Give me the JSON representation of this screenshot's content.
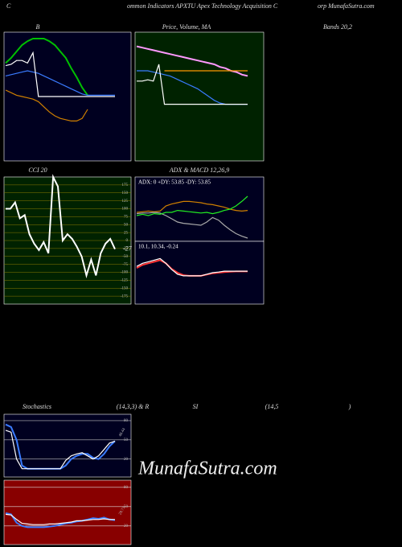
{
  "header": [
    "C",
    "ommon  Indicators APXTU Apex Technology Acquisition  C",
    "orp MunafaSutra.com"
  ],
  "captions": [
    "B",
    "Price, Volume, MA",
    "Bands 20,2",
    "CCI 20",
    "ADX  & MACD 12,26,9",
    "Stochastics",
    "(14,3,3) & R",
    "SI",
    "(14,5",
    ")"
  ],
  "watermark": "MunafaSutra.com",
  "chart_data": [
    {
      "type": "line",
      "background": "#000020",
      "ylim": [
        0,
        100
      ],
      "series": [
        {
          "color": "#00c000",
          "values": [
            76,
            80,
            85,
            90,
            93,
            95,
            95,
            95,
            93,
            90,
            85,
            80,
            72,
            65,
            57,
            51,
            null,
            null,
            null,
            null,
            null
          ]
        },
        {
          "color": "#3a7bff",
          "values": [
            66,
            67,
            68,
            69,
            70,
            69,
            68,
            66,
            64,
            62,
            60,
            58,
            56,
            54,
            52,
            51,
            51,
            51,
            51,
            51,
            51
          ]
        },
        {
          "color": "#d08000",
          "values": [
            55,
            53,
            51,
            50,
            49,
            48,
            46,
            42,
            38,
            35,
            33,
            32,
            31,
            31,
            33,
            40,
            null,
            null,
            null,
            null,
            null
          ]
        },
        {
          "color": "#ffffff",
          "values": [
            74,
            75,
            78,
            78,
            76,
            84,
            50,
            50,
            50,
            50,
            50,
            50,
            50,
            50,
            50,
            50,
            50,
            50,
            50,
            50,
            50
          ]
        }
      ]
    },
    {
      "type": "line",
      "background": "#002200",
      "ylim": [
        0,
        100
      ],
      "series": [
        {
          "color": "#ff99ff",
          "values": [
            89,
            88,
            87,
            86,
            85,
            84,
            83,
            82,
            81,
            80,
            79,
            78,
            77,
            76,
            75,
            73,
            72,
            70,
            69,
            67,
            66
          ]
        },
        {
          "color": "#ff9900",
          "values": [
            null,
            null,
            null,
            null,
            null,
            70,
            70,
            70,
            70,
            70,
            70,
            70,
            70,
            70,
            70,
            70,
            70,
            70,
            70,
            70,
            70
          ]
        },
        {
          "color": "#3a7bff",
          "values": [
            70,
            70,
            70,
            69,
            68,
            67,
            66,
            64,
            62,
            60,
            58,
            56,
            53,
            50,
            47,
            45,
            44,
            44,
            44,
            44,
            44
          ]
        },
        {
          "color": "#ffffff",
          "values": [
            62,
            62,
            63,
            62,
            75,
            44,
            44,
            44,
            44,
            44,
            44,
            44,
            44,
            44,
            44,
            44,
            44,
            44,
            44,
            44,
            44
          ]
        }
      ]
    },
    {
      "type": "line",
      "background": "#002200",
      "ylim": [
        -200,
        200
      ],
      "gridcolor": "#8a7a00",
      "yticks": [
        175,
        150,
        125,
        100,
        75,
        50,
        25,
        0,
        -25,
        -50,
        -75,
        -100,
        -125,
        -150,
        -175
      ],
      "annotation": "-27",
      "series": [
        {
          "color": "#ffffff",
          "values": [
            100,
            100,
            120,
            70,
            80,
            20,
            -10,
            -30,
            -5,
            -40,
            200,
            170,
            0,
            20,
            5,
            -20,
            -50,
            -110,
            -60,
            -110,
            -40,
            -10,
            5,
            -27
          ]
        }
      ]
    },
    {
      "type": "line",
      "background": "#000020",
      "ylim": [
        0,
        100
      ],
      "annotation": "ADX: 0  +DY: 53.85 -DY: 53.85",
      "series": [
        {
          "color": "#d08000",
          "values": [
            45,
            46,
            47,
            46,
            47,
            55,
            58,
            60,
            62,
            62,
            61,
            60,
            58,
            57,
            55,
            53,
            50,
            48,
            47,
            48
          ]
        },
        {
          "color": "#aaaaaa",
          "values": [
            43,
            44,
            44,
            45,
            44,
            40,
            35,
            30,
            28,
            27,
            26,
            25,
            30,
            37,
            33,
            25,
            18,
            12,
            8,
            5
          ]
        },
        {
          "color": "#22ee22",
          "values": [
            40,
            42,
            40,
            43,
            42,
            45,
            45,
            48,
            47,
            46,
            45,
            44,
            45,
            43,
            45,
            48,
            50,
            55,
            62,
            70
          ]
        }
      ]
    },
    {
      "type": "line",
      "background": "#000020",
      "ylim": [
        -1,
        1
      ],
      "annotation": "10.1,  10.34,  -0.24",
      "series": [
        {
          "color": "#ff3333",
          "values": [
            0.15,
            0.25,
            0.3,
            0.35,
            0.4,
            0.3,
            0.12,
            0,
            -0.08,
            -0.1,
            -0.1,
            -0.1,
            -0.06,
            -0.02,
            0,
            0.02,
            0.03,
            0.04,
            0.04,
            0.04
          ]
        },
        {
          "color": "#ffffff",
          "values": [
            0.2,
            0.3,
            0.35,
            0.4,
            0.45,
            0.3,
            0.1,
            -0.05,
            -0.1,
            -0.1,
            -0.1,
            -0.1,
            -0.05,
            0,
            0.02,
            0.05,
            0.05,
            0.05,
            0.05,
            0.05
          ]
        }
      ]
    },
    {
      "type": "line",
      "background": "#000020",
      "ylim": [
        -8,
        90
      ],
      "gridcolor": "#bbbbbb",
      "yticks": [
        80,
        50,
        20
      ],
      "annotation": "48.44",
      "series": [
        {
          "color": "#3a7bff",
          "values": [
            74,
            70,
            50,
            10,
            5,
            5,
            5,
            5,
            5,
            5,
            5,
            10,
            20,
            25,
            28,
            28,
            22,
            20,
            28,
            40,
            48
          ]
        },
        {
          "color": "#ffffff",
          "values": [
            65,
            62,
            20,
            5,
            5,
            5,
            5,
            5,
            5,
            5,
            5,
            18,
            25,
            28,
            30,
            25,
            20,
            25,
            35,
            45,
            48
          ]
        }
      ]
    },
    {
      "type": "line",
      "background": "#880000",
      "ylim": [
        -9,
        91
      ],
      "gridcolor": "#dddddd",
      "yticks": [
        80,
        50,
        20
      ],
      "annotation": "29.71",
      "series": [
        {
          "color": "#3a7bff",
          "values": [
            40,
            38,
            25,
            20,
            18,
            18,
            18,
            18,
            19,
            20,
            22,
            24,
            25,
            27,
            28,
            30,
            32,
            31,
            33,
            30,
            29
          ]
        },
        {
          "color": "#ffffff",
          "values": [
            38,
            37,
            30,
            24,
            23,
            22,
            22,
            22,
            23,
            23,
            24,
            25,
            26,
            28,
            28,
            29,
            30,
            30,
            31,
            30,
            30
          ]
        }
      ]
    }
  ]
}
